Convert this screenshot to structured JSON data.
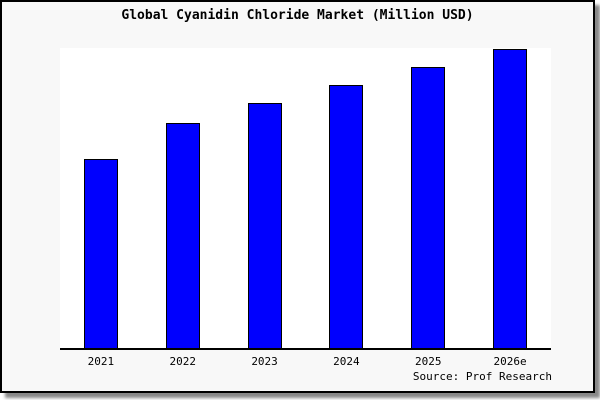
{
  "title": "Global Cyanidin Chloride Market (Million USD)",
  "source_caption": "Source: Prof Research",
  "colors": {
    "bar_fill": "#0000fe",
    "bar_border": "#000000",
    "frame_background": "#f8f8f8",
    "plot_background": "#ffffff",
    "axis": "#000000",
    "frame_border": "#000000",
    "shadow": "#888888",
    "text": "#000000"
  },
  "chart_data": {
    "type": "bar",
    "title": "Global Cyanidin Chloride Market (Million USD)",
    "categories": [
      "2021",
      "2022",
      "2023",
      "2024",
      "2025",
      "2026e"
    ],
    "values": [
      63,
      75,
      82,
      88,
      94,
      100
    ],
    "note": "No y-axis ticks or value labels shown; values are relative bar heights as percent of the tallest (2026e) bar.",
    "xlabel": "",
    "ylabel": "",
    "ylim": [
      0,
      100
    ],
    "grid": false,
    "legend": false,
    "bar_count": 6
  }
}
